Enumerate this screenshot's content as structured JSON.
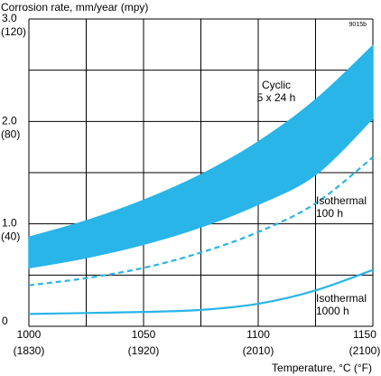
{
  "chart_data": {
    "type": "line",
    "title": "",
    "ylabel": "Corrosion rate, mm/year (mpy)",
    "xlabel": "Temperature, °C (°F)",
    "figure_code": "9015b",
    "xlim": [
      1000,
      1150
    ],
    "ylim": [
      0,
      3.0
    ],
    "x_ticks": [
      {
        "value": 1000,
        "label": "1000",
        "sublabel": "(1830)"
      },
      {
        "value": 1050,
        "label": "1050",
        "sublabel": "(1920)"
      },
      {
        "value": 1100,
        "label": "1100",
        "sublabel": "(2010)"
      },
      {
        "value": 1150,
        "label": "1150",
        "sublabel": "(2100)"
      }
    ],
    "y_ticks": [
      {
        "value": 0,
        "label": "0",
        "sublabel": ""
      },
      {
        "value": 1.0,
        "label": "1.0",
        "sublabel": "(40)"
      },
      {
        "value": 2.0,
        "label": "2.0",
        "sublabel": "(80)"
      },
      {
        "value": 3.0,
        "label": "3.0",
        "sublabel": "(120)"
      }
    ],
    "grid": true,
    "series": [
      {
        "name": "Cyclic 5 x 24 h",
        "style": "band",
        "color": "#29b5e8",
        "x": [
          1000,
          1025,
          1050,
          1075,
          1100,
          1125,
          1150
        ],
        "upper": [
          0.87,
          1.03,
          1.23,
          1.48,
          1.8,
          2.21,
          2.74
        ],
        "lower": [
          0.57,
          0.67,
          0.8,
          0.97,
          1.19,
          1.48,
          2.03
        ]
      },
      {
        "name": "Isothermal 100 h",
        "style": "dashed",
        "color": "#29b5e8",
        "x": [
          1000,
          1025,
          1050,
          1075,
          1100,
          1125,
          1150
        ],
        "y": [
          0.4,
          0.47,
          0.57,
          0.72,
          0.92,
          1.2,
          1.65
        ]
      },
      {
        "name": "Isothermal 1000 h",
        "style": "solid",
        "color": "#29b5e8",
        "x": [
          1000,
          1025,
          1050,
          1075,
          1100,
          1125,
          1150
        ],
        "y": [
          0.12,
          0.13,
          0.14,
          0.16,
          0.22,
          0.35,
          0.55
        ]
      }
    ],
    "annotations": [
      {
        "series": 0,
        "lines": [
          "Cyclic",
          "5 x 24 h"
        ]
      },
      {
        "series": 1,
        "lines": [
          "Isothermal",
          "100 h"
        ]
      },
      {
        "series": 2,
        "lines": [
          "Isothermal",
          "1000 h"
        ]
      }
    ]
  }
}
